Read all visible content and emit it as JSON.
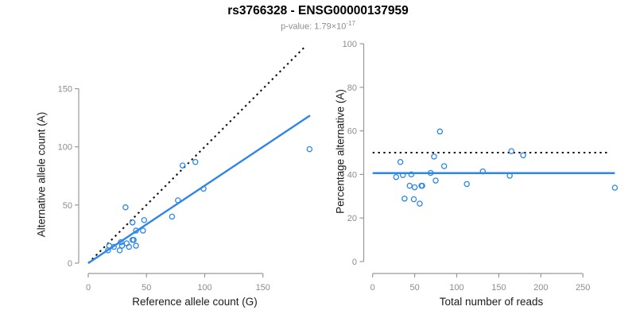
{
  "header": {
    "title": "rs3766328 - ENSG00000137959",
    "subtitle_label": "p-value: ",
    "subtitle_value": "1.79×10",
    "subtitle_exponent": "-17"
  },
  "colors": {
    "accent_blue": "#2e86e8",
    "dotted_black": "#111111",
    "axis_gray": "#999999",
    "tick_label_gray": "#8c8c8c",
    "axis_title_black": "#1a1a1a",
    "subtitle_gray": "#8c8c8c"
  },
  "chart_data": [
    {
      "id": "allele-count-scatter",
      "type": "scatter",
      "xlabel": "Reference allele count (G)",
      "ylabel": "Alternative allele count (A)",
      "xticks": [
        0,
        50,
        100,
        150
      ],
      "yticks": [
        0,
        50,
        100,
        150
      ],
      "xlim": [
        0,
        192
      ],
      "ylim": [
        0,
        188
      ],
      "marker": "open-circle",
      "legend": "none",
      "grid": false,
      "points": [
        [
          32,
          48
        ],
        [
          38,
          35
        ],
        [
          81,
          84
        ],
        [
          92,
          87
        ],
        [
          48,
          37
        ],
        [
          18,
          15
        ],
        [
          41,
          28
        ],
        [
          77,
          54
        ],
        [
          22,
          14
        ],
        [
          28,
          18
        ],
        [
          17,
          11
        ],
        [
          47,
          28
        ],
        [
          72,
          40
        ],
        [
          99,
          64
        ],
        [
          190,
          98
        ],
        [
          29,
          15
        ],
        [
          33,
          17
        ],
        [
          38,
          20
        ],
        [
          39,
          20
        ],
        [
          27,
          11
        ],
        [
          35,
          14
        ],
        [
          41,
          15
        ]
      ],
      "lines": [
        {
          "name": "identity-line",
          "style": "dotted",
          "color": "#111111",
          "x1": 0,
          "y1": 0,
          "x2": 187,
          "y2": 187
        },
        {
          "name": "fit-line",
          "style": "solid",
          "color": "#2e86e8",
          "x1": 0,
          "y1": 0,
          "x2": 190.5,
          "y2": 127
        }
      ]
    },
    {
      "id": "percentage-alternative-scatter",
      "type": "scatter",
      "xlabel": "Total number of reads",
      "ylabel": "Percentage alternative (A)",
      "xticks": [
        0,
        50,
        100,
        150,
        200,
        250
      ],
      "yticks": [
        0,
        20,
        40,
        60,
        80,
        100
      ],
      "xlim": [
        0,
        295
      ],
      "ylim": [
        0,
        100
      ],
      "marker": "open-circle",
      "legend": "none",
      "grid": false,
      "points": [
        [
          80,
          59.7
        ],
        [
          73,
          48.2
        ],
        [
          165,
          50.7
        ],
        [
          179,
          48.8
        ],
        [
          85,
          43.8
        ],
        [
          33,
          45.7
        ],
        [
          69,
          40.7
        ],
        [
          131,
          41.4
        ],
        [
          36,
          39.7
        ],
        [
          46,
          40
        ],
        [
          28,
          38.8
        ],
        [
          75,
          37.2
        ],
        [
          112,
          35.6
        ],
        [
          163,
          39.4
        ],
        [
          288,
          33.9
        ],
        [
          44,
          34.8
        ],
        [
          50,
          34.1
        ],
        [
          58,
          34.8
        ],
        [
          59,
          34.8
        ],
        [
          38,
          28.9
        ],
        [
          49,
          28.6
        ],
        [
          56,
          26.6
        ]
      ],
      "lines": [
        {
          "name": "expected-50pct-line",
          "style": "dotted",
          "color": "#111111",
          "x1": 0,
          "y1": 50,
          "x2": 282,
          "y2": 50
        },
        {
          "name": "mean-pct-line",
          "style": "solid",
          "color": "#2e86e8",
          "x1": 0,
          "y1": 40.6,
          "x2": 288,
          "y2": 40.6
        }
      ]
    }
  ]
}
